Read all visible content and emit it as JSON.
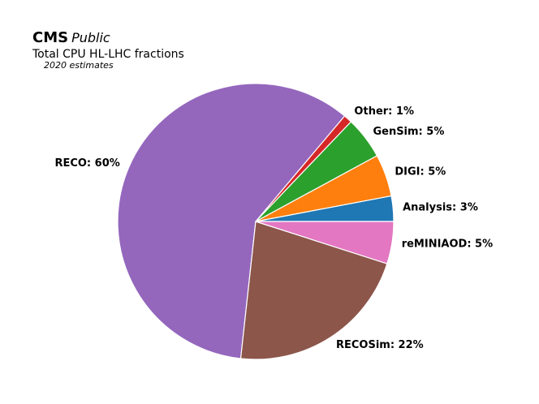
{
  "chart_data": {
    "type": "pie",
    "experiment": "CMS",
    "experiment_tag": "Public",
    "title": "Total CPU HL-LHC fractions",
    "subtitle": "2020 estimates",
    "categories": [
      "Analysis",
      "DIGI",
      "GenSim",
      "Other",
      "RECO",
      "RECOSim",
      "reMINIAOD"
    ],
    "values": [
      3,
      5,
      5,
      1,
      60,
      22,
      5
    ],
    "value_labels": [
      "Analysis: 3%",
      "DIGI: 5%",
      "GenSim: 5%",
      "Other: 1%",
      "RECO: 60%",
      "RECOSim: 22%",
      "reMINIAOD: 5%"
    ],
    "colors": [
      "#1f77b4",
      "#ff7f0e",
      "#2ca02c",
      "#d62728",
      "#9467bd",
      "#8c564b",
      "#e377c2"
    ]
  }
}
